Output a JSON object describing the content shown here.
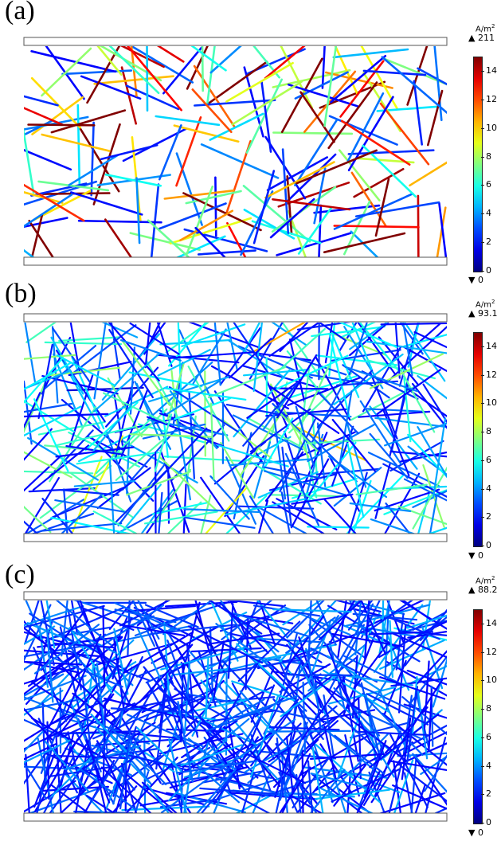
{
  "panels": [
    {
      "letter": "(a)",
      "unit": "A/m",
      "unit_exp": "2",
      "max_label": "▲ 211",
      "min_label": "▼ 0",
      "ticks": [
        "14",
        "12",
        "10",
        "8",
        "6",
        "4",
        "2",
        "0"
      ],
      "density": 170,
      "intensity": 0.55
    },
    {
      "letter": "(b)",
      "unit": "A/m",
      "unit_exp": "2",
      "max_label": "▲ 93.1",
      "min_label": "▼ 0",
      "ticks": [
        "14",
        "12",
        "10",
        "8",
        "6",
        "4",
        "2",
        "0"
      ],
      "density": 380,
      "intensity": 0.22
    },
    {
      "letter": "(c)",
      "unit": "A/m",
      "unit_exp": "2",
      "max_label": "▲ 88.2",
      "min_label": "▼ 0",
      "ticks": [
        "14",
        "12",
        "10",
        "8",
        "6",
        "4",
        "2",
        "0"
      ],
      "density": 620,
      "intensity": 0.1
    }
  ],
  "colors": {
    "jet_low": "#00008f",
    "jet_high": "#800000",
    "electrode_fill": "#ffffff",
    "electrode_stroke": "#555555"
  }
}
